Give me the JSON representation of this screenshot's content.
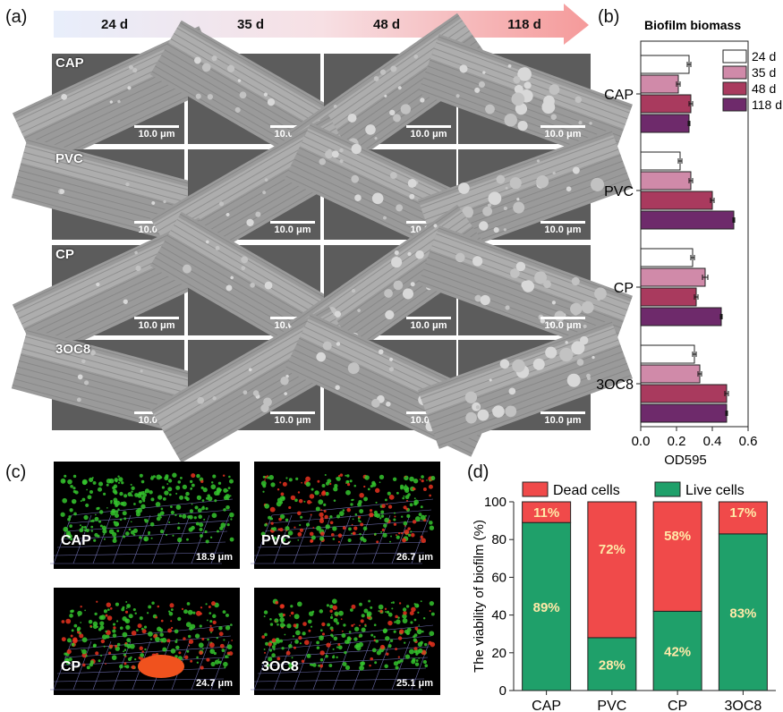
{
  "panels": {
    "a": "(a)",
    "b": "(b)",
    "c": "(c)",
    "d": "(d)"
  },
  "timeline": [
    "24 d",
    "35 d",
    "48 d",
    "118 d"
  ],
  "sem": {
    "materials": [
      "CAP",
      "PVC",
      "CP",
      "3OC8"
    ],
    "scale_label": "10.0 μm"
  },
  "clsm": {
    "images": [
      {
        "label": "CAP",
        "thickness": "18.9 μm"
      },
      {
        "label": "PVC",
        "thickness": "26.7 μm"
      },
      {
        "label": "CP",
        "thickness": "24.7 μm"
      },
      {
        "label": "3OC8",
        "thickness": "25.1 μm"
      }
    ]
  },
  "colors": {
    "d24": "#ffffff",
    "d35": "#d08aa9",
    "d48": "#a93a5e",
    "d118": "#6e2a6b",
    "dead": "#f04a4a",
    "live": "#1fa06a",
    "green_cells": "#35c42e",
    "red_cells": "#e8321e"
  },
  "chart_data": [
    {
      "type": "bar",
      "orientation": "horizontal",
      "title": "Biofilm biomass",
      "xlabel": "OD595",
      "ylabel": "",
      "xlim": [
        0.0,
        0.6
      ],
      "xticks": [
        "0.0",
        "0.2",
        "0.4",
        "0.6"
      ],
      "categories": [
        "CAP",
        "PVC",
        "CP",
        "3OC8"
      ],
      "legend_position": "top-right",
      "series": [
        {
          "name": "24 d",
          "values": [
            0.27,
            0.22,
            0.29,
            0.3
          ],
          "errors": [
            0.01,
            0.01,
            0.01,
            0.01
          ]
        },
        {
          "name": "35 d",
          "values": [
            0.21,
            0.28,
            0.36,
            0.33
          ],
          "errors": [
            0.01,
            0.01,
            0.015,
            0.01
          ]
        },
        {
          "name": "48 d",
          "values": [
            0.28,
            0.4,
            0.31,
            0.48
          ],
          "errors": [
            0.01,
            0.01,
            0.01,
            0.01
          ]
        },
        {
          "name": "118 d",
          "values": [
            0.27,
            0.52,
            0.45,
            0.48
          ],
          "errors": [
            0.005,
            0.005,
            0.005,
            0.005
          ]
        }
      ]
    },
    {
      "type": "bar",
      "stacked": true,
      "ylabel": "The viability of biofilm (%)",
      "xlabel": "",
      "ylim": [
        0,
        100
      ],
      "yticks": [
        "0",
        "20",
        "40",
        "60",
        "80",
        "100"
      ],
      "categories": [
        "CAP",
        "PVC",
        "CP",
        "3OC8"
      ],
      "legend_position": "top",
      "series": [
        {
          "name": "Live cells",
          "values": [
            89,
            28,
            42,
            83
          ],
          "labels": [
            "89%",
            "28%",
            "42%",
            "83%"
          ]
        },
        {
          "name": "Dead cells",
          "values": [
            11,
            72,
            58,
            17
          ],
          "labels": [
            "11%",
            "72%",
            "58%",
            "17%"
          ]
        }
      ]
    }
  ]
}
